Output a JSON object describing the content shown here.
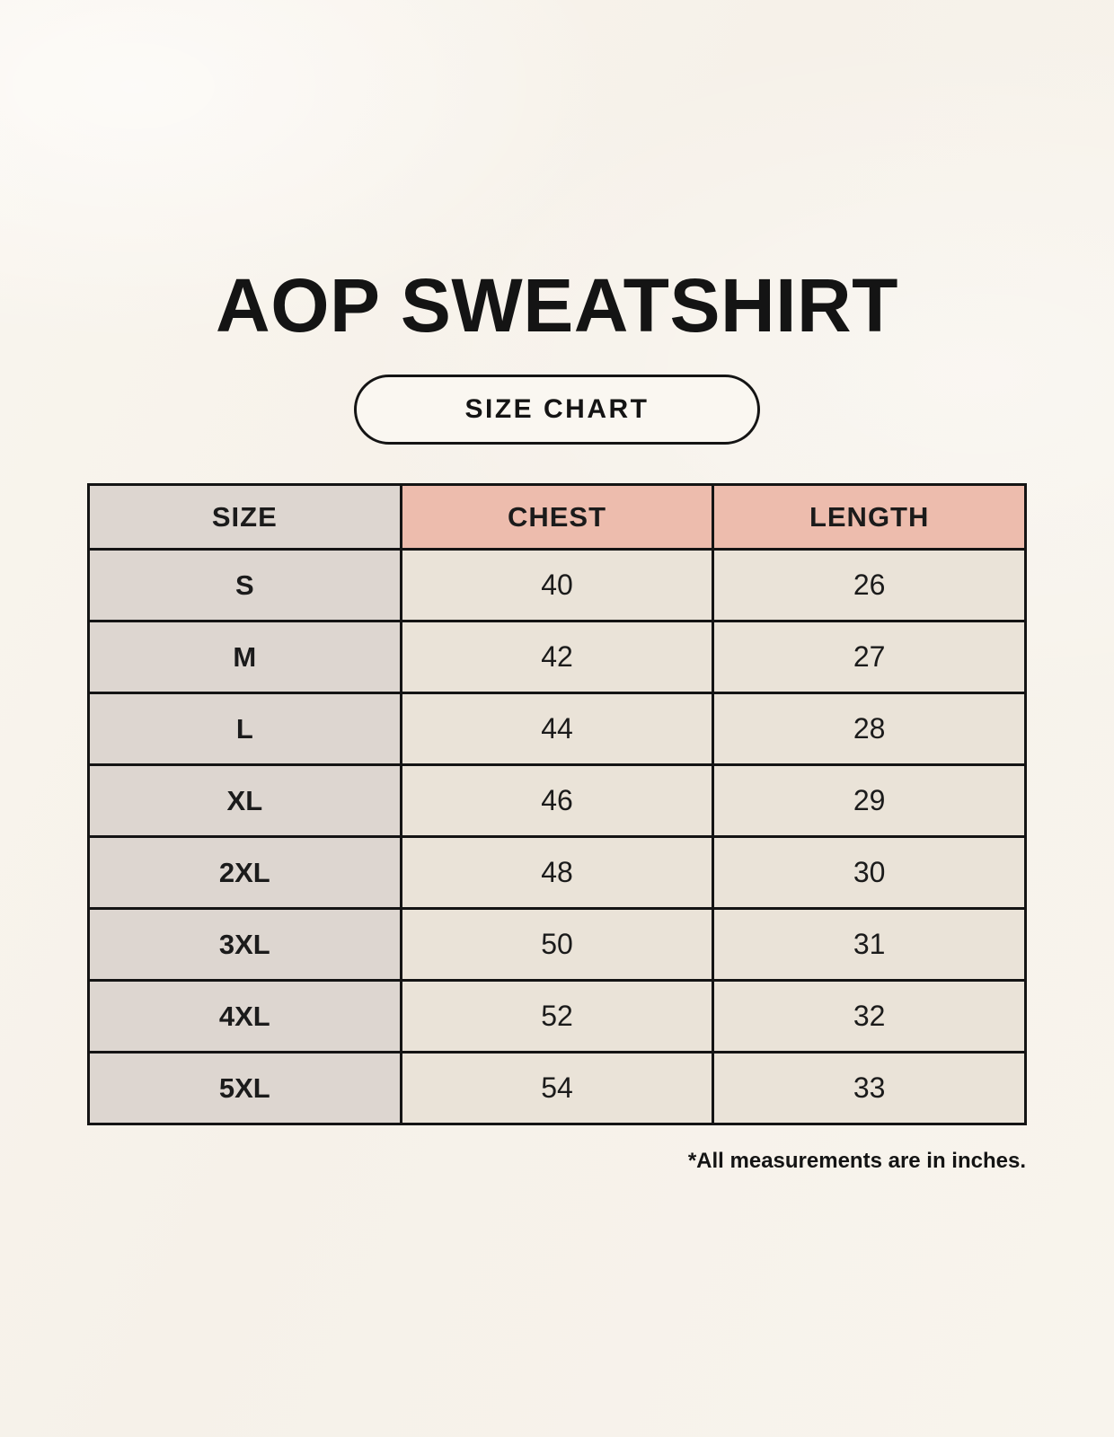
{
  "page": {
    "title": "AOP SWEATSHIRT",
    "badge_label": "SIZE CHART",
    "footnote": "*All measurements are in inches."
  },
  "colors": {
    "page_background": "#f8f4ed",
    "size_column_background": "#ddd6d0",
    "header_accent_background": "#edbcad",
    "cell_background": "#eae3d8",
    "table_border": "#141414",
    "text": "#1b1b1b"
  },
  "chart_data": {
    "type": "table",
    "title": "AOP SWEATSHIRT",
    "subtitle": "SIZE CHART",
    "units": "inches",
    "columns": [
      "SIZE",
      "CHEST",
      "LENGTH"
    ],
    "rows": [
      [
        "S",
        40,
        26
      ],
      [
        "M",
        42,
        27
      ],
      [
        "L",
        44,
        28
      ],
      [
        "XL",
        46,
        29
      ],
      [
        "2XL",
        48,
        30
      ],
      [
        "3XL",
        50,
        31
      ],
      [
        "4XL",
        52,
        32
      ],
      [
        "5XL",
        54,
        33
      ]
    ],
    "footnote": "*All measurements are in inches."
  }
}
